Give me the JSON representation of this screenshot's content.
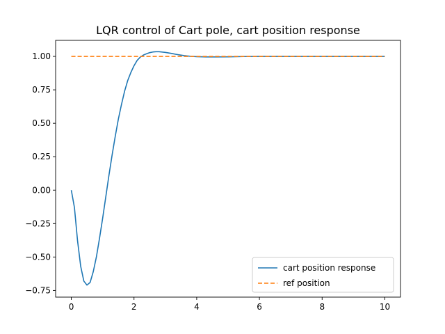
{
  "chart_data": {
    "type": "line",
    "title": "LQR control of Cart pole, cart position response",
    "xlabel": "",
    "ylabel": "",
    "xlim": [
      -0.5,
      10.5
    ],
    "ylim": [
      -0.8,
      1.12
    ],
    "xticks": [
      0,
      2,
      4,
      6,
      8,
      10
    ],
    "xtick_labels": [
      "0",
      "2",
      "4",
      "6",
      "8",
      "10"
    ],
    "yticks": [
      -0.75,
      -0.5,
      -0.25,
      0.0,
      0.25,
      0.5,
      0.75,
      1.0
    ],
    "ytick_labels": [
      "−0.75",
      "−0.50",
      "−0.25",
      "0.00",
      "0.25",
      "0.50",
      "0.75",
      "1.00"
    ],
    "grid": false,
    "legend_position": "lower-right",
    "series": [
      {
        "name": "cart position response",
        "color": "#1f77b4",
        "style": "solid",
        "x": [
          0,
          0.1,
          0.2,
          0.3,
          0.4,
          0.5,
          0.6,
          0.7,
          0.8,
          0.9,
          1.0,
          1.1,
          1.2,
          1.3,
          1.4,
          1.5,
          1.6,
          1.7,
          1.8,
          1.9,
          2.0,
          2.1,
          2.2,
          2.3,
          2.4,
          2.5,
          2.6,
          2.7,
          2.8,
          3.0,
          3.2,
          3.4,
          3.6,
          3.8,
          4.0,
          4.3,
          4.6,
          5.0,
          5.5,
          6.0,
          7.0,
          8.0,
          9.0,
          10.0
        ],
        "y": [
          0.0,
          -0.13,
          -0.38,
          -0.57,
          -0.68,
          -0.71,
          -0.69,
          -0.61,
          -0.5,
          -0.36,
          -0.21,
          -0.05,
          0.11,
          0.26,
          0.4,
          0.53,
          0.64,
          0.74,
          0.82,
          0.88,
          0.93,
          0.97,
          0.995,
          1.01,
          1.02,
          1.028,
          1.033,
          1.035,
          1.035,
          1.03,
          1.022,
          1.013,
          1.006,
          1.001,
          0.998,
          0.996,
          0.996,
          0.997,
          0.999,
          1.0,
          1.0,
          1.0,
          1.0,
          1.0
        ]
      },
      {
        "name": "ref position",
        "color": "#ff7f0e",
        "style": "dashed",
        "x": [
          0,
          10
        ],
        "y": [
          1.0,
          1.0
        ]
      }
    ]
  }
}
